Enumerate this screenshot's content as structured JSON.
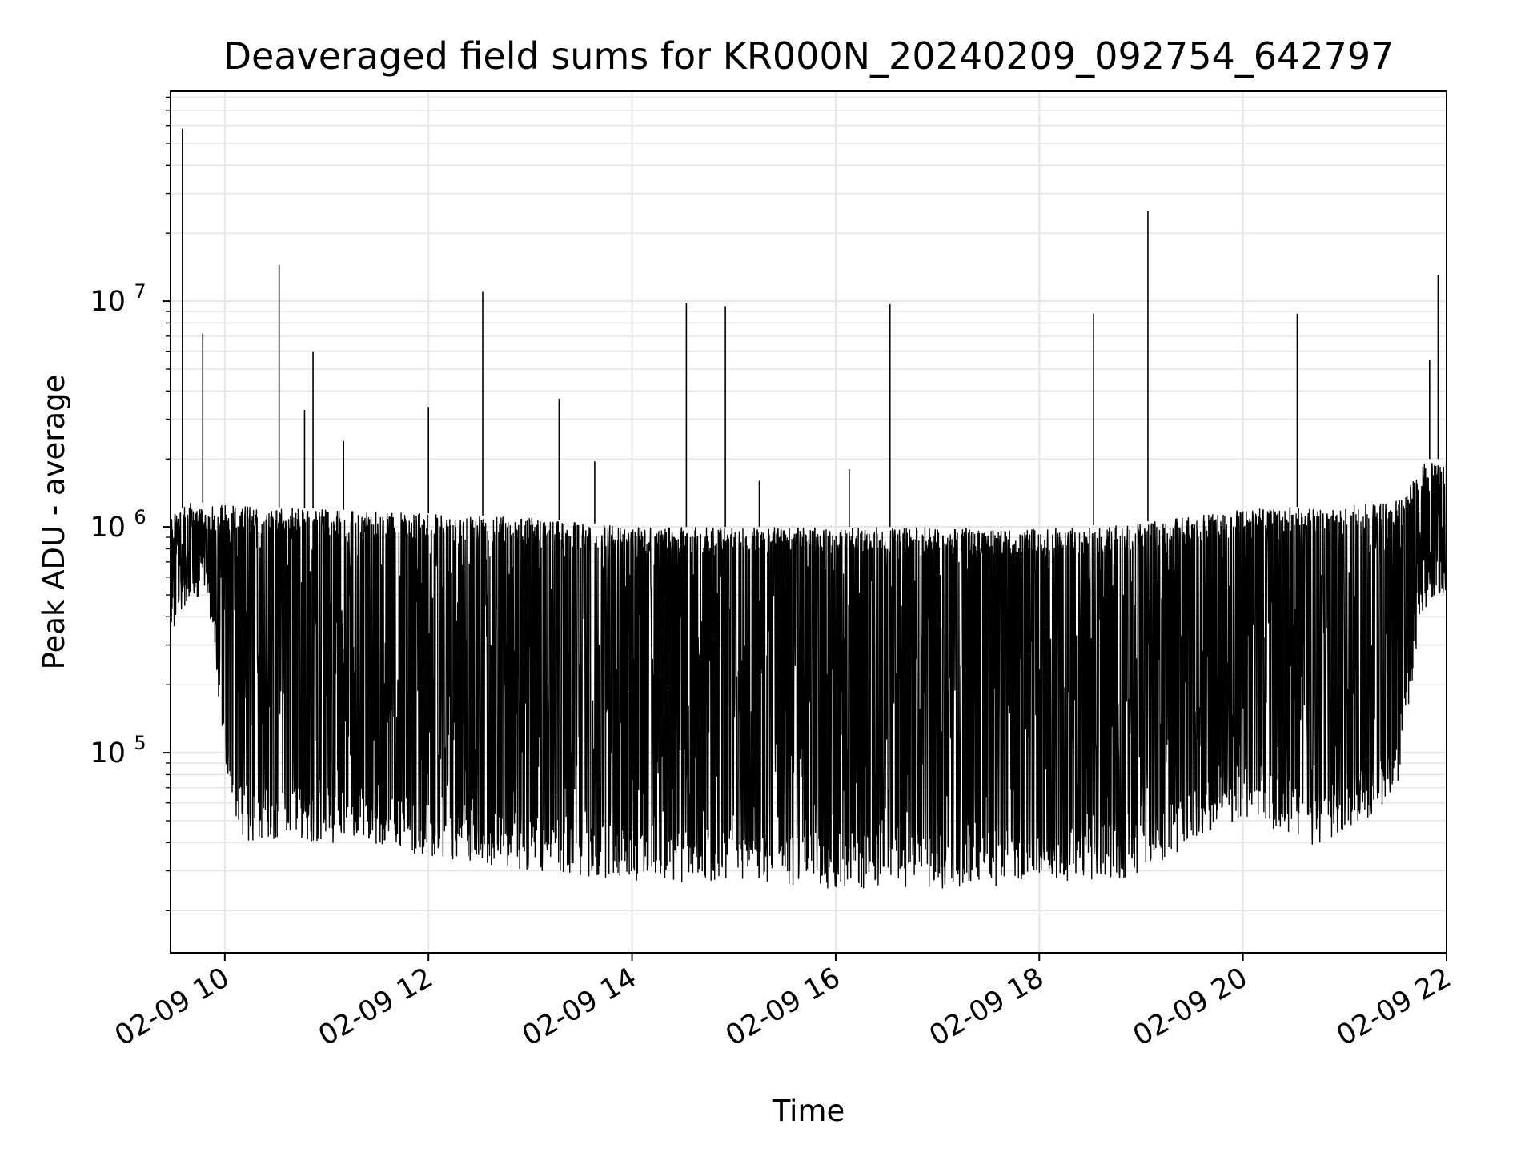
{
  "chart_data": {
    "type": "line",
    "title": "Deaveraged field sums for KR000N_20240209_092754_642797",
    "xlabel": "Time",
    "ylabel": "Peak ADU - average",
    "x_scale": "time",
    "y_scale": "log",
    "xlim": [
      "2024-02-09T09:28",
      "2024-02-09T22:00"
    ],
    "ylim": [
      13000,
      85000000
    ],
    "x_ticks": [
      "2024-02-09T10:00",
      "2024-02-09T12:00",
      "2024-02-09T14:00",
      "2024-02-09T16:00",
      "2024-02-09T18:00",
      "2024-02-09T20:00",
      "2024-02-09T22:00"
    ],
    "x_tick_labels": [
      "02-09 10",
      "02-09 12",
      "02-09 14",
      "02-09 16",
      "02-09 18",
      "02-09 20",
      "02-09 22"
    ],
    "y_ticks": [
      100000,
      1000000,
      10000000
    ],
    "y_tick_labels": [
      {
        "base": "10",
        "exp": "5"
      },
      {
        "base": "10",
        "exp": "6"
      },
      {
        "base": "10",
        "exp": "7"
      }
    ],
    "grid": true,
    "line_color": "#000000",
    "grid_color": "#e6e6e6",
    "series": [
      {
        "envelope_upper": [
          {
            "x": "2024-02-09T09:28",
            "y": 1100000
          },
          {
            "x": "2024-02-09T09:40",
            "y": 1300000
          },
          {
            "x": "2024-02-09T10:00",
            "y": 1250000
          },
          {
            "x": "2024-02-09T11:00",
            "y": 1200000
          },
          {
            "x": "2024-02-09T12:00",
            "y": 1150000
          },
          {
            "x": "2024-02-09T13:00",
            "y": 1100000
          },
          {
            "x": "2024-02-09T14:00",
            "y": 1000000
          },
          {
            "x": "2024-02-09T15:00",
            "y": 1000000
          },
          {
            "x": "2024-02-09T16:00",
            "y": 1000000
          },
          {
            "x": "2024-02-09T17:00",
            "y": 1000000
          },
          {
            "x": "2024-02-09T18:00",
            "y": 980000
          },
          {
            "x": "2024-02-09T19:00",
            "y": 1050000
          },
          {
            "x": "2024-02-09T20:00",
            "y": 1200000
          },
          {
            "x": "2024-02-09T21:00",
            "y": 1250000
          },
          {
            "x": "2024-02-09T21:30",
            "y": 1300000
          },
          {
            "x": "2024-02-09T21:45",
            "y": 2000000
          },
          {
            "x": "2024-02-09T22:00",
            "y": 2000000
          }
        ],
        "envelope_lower": [
          {
            "x": "2024-02-09T09:28",
            "y": 350000
          },
          {
            "x": "2024-02-09T09:50",
            "y": 500000
          },
          {
            "x": "2024-02-09T10:00",
            "y": 90000
          },
          {
            "x": "2024-02-09T10:10",
            "y": 40000
          },
          {
            "x": "2024-02-09T11:00",
            "y": 40000
          },
          {
            "x": "2024-02-09T12:00",
            "y": 35000
          },
          {
            "x": "2024-02-09T13:00",
            "y": 30000
          },
          {
            "x": "2024-02-09T14:00",
            "y": 27000
          },
          {
            "x": "2024-02-09T15:00",
            "y": 26000
          },
          {
            "x": "2024-02-09T16:00",
            "y": 25000
          },
          {
            "x": "2024-02-09T17:00",
            "y": 25000
          },
          {
            "x": "2024-02-09T18:00",
            "y": 26000
          },
          {
            "x": "2024-02-09T19:00",
            "y": 28000
          },
          {
            "x": "2024-02-09T19:30",
            "y": 40000
          },
          {
            "x": "2024-02-09T20:00",
            "y": 50000
          },
          {
            "x": "2024-02-09T20:40",
            "y": 38000
          },
          {
            "x": "2024-02-09T21:00",
            "y": 45000
          },
          {
            "x": "2024-02-09T21:30",
            "y": 60000
          },
          {
            "x": "2024-02-09T21:45",
            "y": 400000
          },
          {
            "x": "2024-02-09T22:00",
            "y": 500000
          }
        ],
        "spikes": [
          {
            "x": "2024-02-09T09:35",
            "y": 58000000
          },
          {
            "x": "2024-02-09T09:47",
            "y": 7200000
          },
          {
            "x": "2024-02-09T10:32",
            "y": 14500000
          },
          {
            "x": "2024-02-09T10:47",
            "y": 3300000
          },
          {
            "x": "2024-02-09T10:52",
            "y": 6000000
          },
          {
            "x": "2024-02-09T11:10",
            "y": 2400000
          },
          {
            "x": "2024-02-09T12:00",
            "y": 3400000
          },
          {
            "x": "2024-02-09T12:32",
            "y": 11000000
          },
          {
            "x": "2024-02-09T13:17",
            "y": 3700000
          },
          {
            "x": "2024-02-09T13:38",
            "y": 1950000
          },
          {
            "x": "2024-02-09T14:32",
            "y": 9800000
          },
          {
            "x": "2024-02-09T14:55",
            "y": 9500000
          },
          {
            "x": "2024-02-09T15:15",
            "y": 1600000
          },
          {
            "x": "2024-02-09T16:08",
            "y": 1800000
          },
          {
            "x": "2024-02-09T16:32",
            "y": 9700000
          },
          {
            "x": "2024-02-09T18:32",
            "y": 8800000
          },
          {
            "x": "2024-02-09T19:04",
            "y": 25000000
          },
          {
            "x": "2024-02-09T20:32",
            "y": 8800000
          },
          {
            "x": "2024-02-09T21:50",
            "y": 5500000
          },
          {
            "x": "2024-02-09T21:55",
            "y": 13000000
          }
        ]
      }
    ]
  }
}
